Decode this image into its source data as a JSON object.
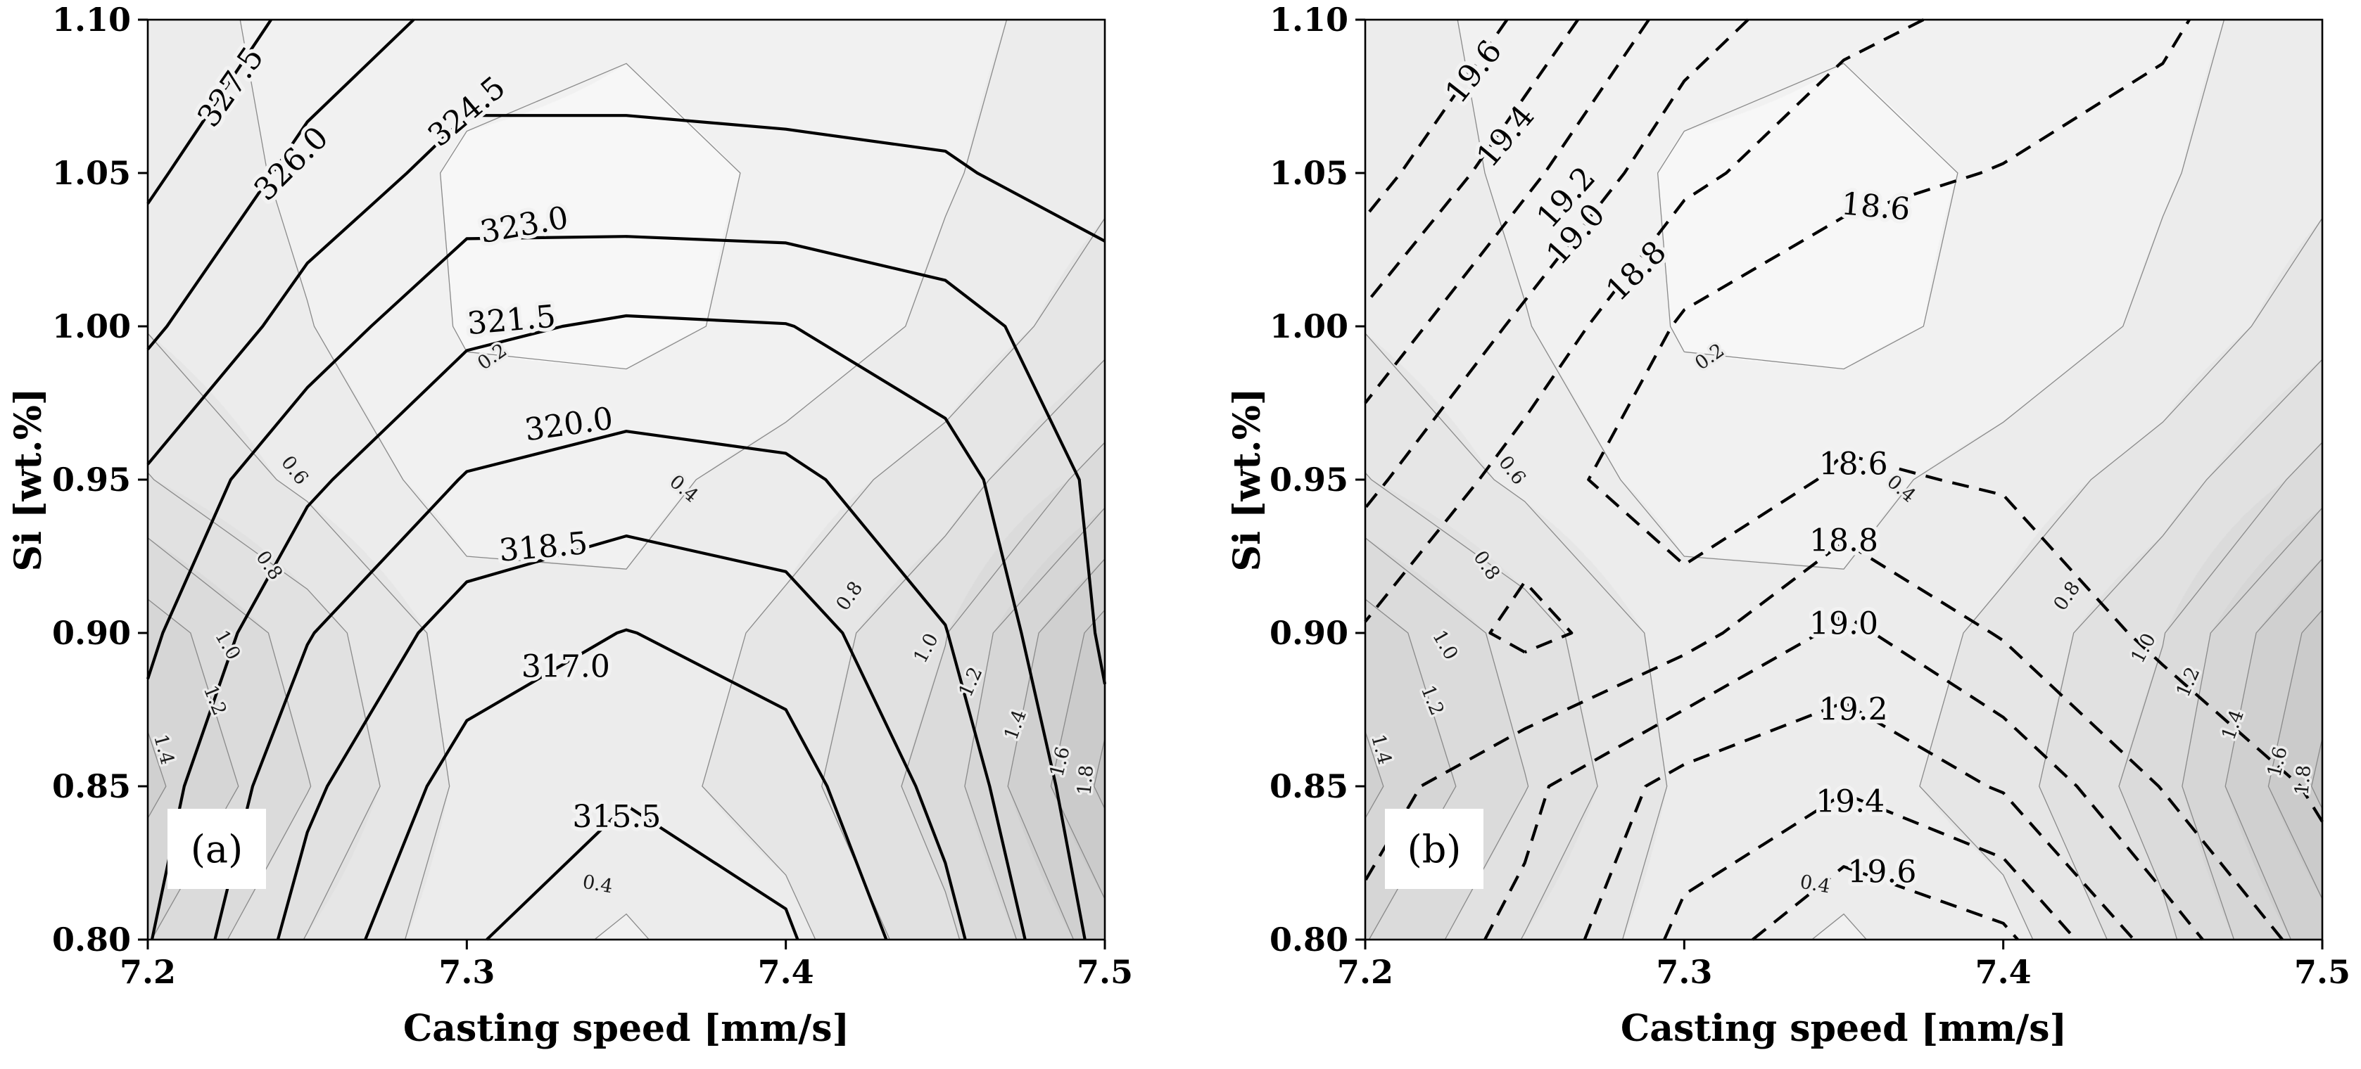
{
  "figure": {
    "background": "#ffffff"
  },
  "chart_data": [
    {
      "type": "contour",
      "panel_label": "(a)",
      "xlabel": "Casting speed [mm/s]",
      "ylabel": "Si [wt.%]",
      "xlim": [
        7.2,
        7.5
      ],
      "ylim": [
        0.8,
        1.1
      ],
      "xticks": [
        "7.2",
        "7.3",
        "7.4",
        "7.5"
      ],
      "yticks": [
        "0.80",
        "0.85",
        "0.90",
        "0.95",
        "1.00",
        "1.05",
        "1.10"
      ],
      "x": [
        7.2,
        7.25,
        7.3,
        7.35,
        7.4,
        7.45,
        7.5
      ],
      "y": [
        0.8,
        0.85,
        0.9,
        0.95,
        1.0,
        1.05,
        1.1
      ],
      "primary": {
        "style": "solid",
        "color": "#000000",
        "levels": [
          315.5,
          317.0,
          318.5,
          320.0,
          321.5,
          323.0,
          324.5,
          326.0,
          327.5
        ],
        "values": [
          [
            321.6,
            317.8,
            315.6,
            314.8,
            315.3,
            318.0,
            322.0
          ],
          [
            322.3,
            318.8,
            316.4,
            315.6,
            316.3,
            319.0,
            322.6
          ],
          [
            323.3,
            320.1,
            317.8,
            316.95,
            317.7,
            319.95,
            323.2
          ],
          [
            324.3,
            321.8,
            319.9,
            319.4,
            319.7,
            320.9,
            323.4
          ],
          [
            326.3,
            323.8,
            321.8,
            321.3,
            321.45,
            322.4,
            324.0
          ],
          [
            327.8,
            325.5,
            323.9,
            324.2,
            324.3,
            324.4,
            324.9
          ],
          [
            329.2,
            327.0,
            325.5,
            325.0,
            325.0,
            325.1,
            325.5
          ]
        ]
      },
      "background_field": {
        "style": "thin",
        "color": "#8a8a8a",
        "levels": [
          0.2,
          0.4,
          0.6,
          0.8,
          1.0,
          1.2,
          1.4,
          1.6,
          1.8
        ],
        "fill_shades": [
          "#f7f7f7",
          "#f1f1f1",
          "#ececec",
          "#e6e6e6",
          "#e1e1e1",
          "#dbdbdb",
          "#d6d6d6",
          "#d0d0d0",
          "#cbcbcb",
          "#c5c5c5"
        ],
        "values": [
          [
            1.21,
            0.79,
            0.48,
            0.38,
            0.52,
            0.95,
            1.51
          ],
          [
            1.45,
            1.01,
            0.55,
            0.5,
            0.71,
            1.11,
            1.85
          ],
          [
            1.31,
            0.9,
            0.5,
            0.45,
            0.65,
            0.99,
            1.69
          ],
          [
            0.81,
            0.55,
            0.3,
            0.33,
            0.49,
            0.69,
            1.09
          ],
          [
            0.59,
            0.41,
            0.18,
            0.15,
            0.25,
            0.45,
            0.72
          ],
          [
            0.55,
            0.35,
            0.17,
            0.15,
            0.22,
            0.38,
            0.55
          ],
          [
            0.51,
            0.32,
            0.28,
            0.22,
            0.28,
            0.35,
            0.48
          ]
        ]
      },
      "contour_labels": [
        {
          "text": "327.5",
          "x": 7.226,
          "y": 1.078,
          "rot": -55,
          "kind": "primary"
        },
        {
          "text": "326.0",
          "x": 7.245,
          "y": 1.053,
          "rot": -45,
          "kind": "primary"
        },
        {
          "text": "324.5",
          "x": 7.3,
          "y": 1.07,
          "rot": -40,
          "kind": "primary"
        },
        {
          "text": "323.0",
          "x": 7.318,
          "y": 1.033,
          "rot": -10,
          "kind": "primary"
        },
        {
          "text": "321.5",
          "x": 7.314,
          "y": 1.002,
          "rot": -5,
          "kind": "primary"
        },
        {
          "text": "320.0",
          "x": 7.332,
          "y": 0.968,
          "rot": -8,
          "kind": "primary"
        },
        {
          "text": "318.5",
          "x": 7.324,
          "y": 0.928,
          "rot": -5,
          "kind": "primary"
        },
        {
          "text": "317.0",
          "x": 7.331,
          "y": 0.889,
          "rot": 0,
          "kind": "primary"
        },
        {
          "text": "315.5",
          "x": 7.347,
          "y": 0.84,
          "rot": 0,
          "kind": "primary"
        },
        {
          "text": "0.2",
          "x": 7.308,
          "y": 0.99,
          "rot": -35,
          "kind": "sigma"
        },
        {
          "text": "0.4",
          "x": 7.368,
          "y": 0.947,
          "rot": 40,
          "kind": "sigma"
        },
        {
          "text": "0.6",
          "x": 7.246,
          "y": 0.953,
          "rot": 52,
          "kind": "sigma"
        },
        {
          "text": "0.8",
          "x": 7.238,
          "y": 0.922,
          "rot": 55,
          "kind": "sigma"
        },
        {
          "text": "1.0",
          "x": 7.225,
          "y": 0.896,
          "rot": 60,
          "kind": "sigma"
        },
        {
          "text": "1.2",
          "x": 7.221,
          "y": 0.878,
          "rot": 68,
          "kind": "sigma"
        },
        {
          "text": "1.4",
          "x": 7.205,
          "y": 0.862,
          "rot": 75,
          "kind": "sigma"
        },
        {
          "text": "0.8",
          "x": 7.42,
          "y": 0.912,
          "rot": -55,
          "kind": "sigma"
        },
        {
          "text": "1.0",
          "x": 7.444,
          "y": 0.895,
          "rot": -62,
          "kind": "sigma"
        },
        {
          "text": "1.2",
          "x": 7.458,
          "y": 0.884,
          "rot": -66,
          "kind": "sigma"
        },
        {
          "text": "1.4",
          "x": 7.472,
          "y": 0.87,
          "rot": -70,
          "kind": "sigma"
        },
        {
          "text": "1.6",
          "x": 7.486,
          "y": 0.858,
          "rot": -76,
          "kind": "sigma"
        },
        {
          "text": "1.8",
          "x": 7.494,
          "y": 0.852,
          "rot": -85,
          "kind": "sigma"
        },
        {
          "text": "0.4",
          "x": 7.341,
          "y": 0.818,
          "rot": 10,
          "kind": "sigma"
        }
      ]
    },
    {
      "type": "contour",
      "panel_label": "(b)",
      "xlabel": "Casting speed [mm/s]",
      "ylabel": "Si [wt.%]",
      "xlim": [
        7.2,
        7.5
      ],
      "ylim": [
        0.8,
        1.1
      ],
      "xticks": [
        "7.2",
        "7.3",
        "7.4",
        "7.5"
      ],
      "yticks": [
        "0.80",
        "0.85",
        "0.90",
        "0.95",
        "1.00",
        "1.05",
        "1.10"
      ],
      "x": [
        7.2,
        7.25,
        7.3,
        7.35,
        7.4,
        7.45,
        7.5
      ],
      "y": [
        0.8,
        0.85,
        0.9,
        0.95,
        1.0,
        1.05,
        1.1
      ],
      "primary": {
        "style": "dashed",
        "color": "#000000",
        "levels": [
          18.6,
          18.8,
          19.0,
          19.2,
          19.4,
          19.6
        ],
        "values": [
          [
            18.85,
            19.05,
            19.45,
            19.8,
            19.65,
            19.1,
            18.7
          ],
          [
            18.72,
            18.95,
            19.28,
            19.38,
            19.18,
            18.79,
            18.57
          ],
          [
            18.78,
            18.55,
            18.72,
            19.05,
            18.78,
            18.55,
            18.48
          ],
          [
            19.05,
            18.7,
            18.45,
            18.63,
            18.58,
            18.45,
            18.42
          ],
          [
            19.35,
            18.95,
            18.57,
            18.45,
            18.42,
            18.42,
            18.41
          ],
          [
            19.7,
            19.25,
            18.85,
            18.66,
            18.59,
            18.55,
            18.45
          ],
          [
            20.0,
            19.55,
            19.1,
            18.85,
            18.75,
            18.62,
            18.5
          ]
        ]
      },
      "background_field": {
        "style": "thin",
        "color": "#8a8a8a",
        "levels": [
          0.2,
          0.4,
          0.6,
          0.8,
          1.0,
          1.2,
          1.4,
          1.6,
          1.8
        ],
        "fill_shades": [
          "#f7f7f7",
          "#f1f1f1",
          "#ececec",
          "#e6e6e6",
          "#e1e1e1",
          "#dbdbdb",
          "#d6d6d6",
          "#d0d0d0",
          "#cbcbcb",
          "#c5c5c5"
        ],
        "values": [
          [
            1.21,
            0.79,
            0.48,
            0.38,
            0.52,
            0.95,
            1.51
          ],
          [
            1.45,
            1.01,
            0.55,
            0.5,
            0.71,
            1.11,
            1.85
          ],
          [
            1.31,
            0.9,
            0.5,
            0.45,
            0.65,
            0.99,
            1.69
          ],
          [
            0.81,
            0.55,
            0.3,
            0.33,
            0.49,
            0.69,
            1.09
          ],
          [
            0.59,
            0.41,
            0.18,
            0.15,
            0.25,
            0.45,
            0.72
          ],
          [
            0.55,
            0.35,
            0.17,
            0.15,
            0.22,
            0.38,
            0.55
          ],
          [
            0.51,
            0.32,
            0.28,
            0.22,
            0.28,
            0.35,
            0.48
          ]
        ]
      },
      "contour_labels": [
        {
          "text": "19.6",
          "x": 7.234,
          "y": 1.083,
          "rot": -52,
          "kind": "primary"
        },
        {
          "text": "19.4",
          "x": 7.244,
          "y": 1.062,
          "rot": -50,
          "kind": "primary"
        },
        {
          "text": "19.2",
          "x": 7.263,
          "y": 1.042,
          "rot": -48,
          "kind": "primary"
        },
        {
          "text": "19.0",
          "x": 7.266,
          "y": 1.03,
          "rot": -48,
          "kind": "primary"
        },
        {
          "text": "18.8",
          "x": 7.285,
          "y": 1.018,
          "rot": -45,
          "kind": "primary"
        },
        {
          "text": "18.6",
          "x": 7.36,
          "y": 1.039,
          "rot": 5,
          "kind": "primary"
        },
        {
          "text": "18.6",
          "x": 7.353,
          "y": 0.955,
          "rot": 0,
          "kind": "primary"
        },
        {
          "text": "18.8",
          "x": 7.35,
          "y": 0.93,
          "rot": 0,
          "kind": "primary"
        },
        {
          "text": "19.0",
          "x": 7.35,
          "y": 0.903,
          "rot": 0,
          "kind": "primary"
        },
        {
          "text": "19.2",
          "x": 7.353,
          "y": 0.875,
          "rot": 0,
          "kind": "primary"
        },
        {
          "text": "19.4",
          "x": 7.352,
          "y": 0.845,
          "rot": 0,
          "kind": "primary"
        },
        {
          "text": "19.6",
          "x": 7.362,
          "y": 0.822,
          "rot": 0,
          "kind": "primary"
        },
        {
          "text": "0.2",
          "x": 7.308,
          "y": 0.99,
          "rot": -35,
          "kind": "sigma"
        },
        {
          "text": "0.4",
          "x": 7.368,
          "y": 0.947,
          "rot": 40,
          "kind": "sigma"
        },
        {
          "text": "0.6",
          "x": 7.246,
          "y": 0.953,
          "rot": 52,
          "kind": "sigma"
        },
        {
          "text": "0.8",
          "x": 7.238,
          "y": 0.922,
          "rot": 55,
          "kind": "sigma"
        },
        {
          "text": "1.0",
          "x": 7.225,
          "y": 0.896,
          "rot": 60,
          "kind": "sigma"
        },
        {
          "text": "1.2",
          "x": 7.221,
          "y": 0.878,
          "rot": 68,
          "kind": "sigma"
        },
        {
          "text": "1.4",
          "x": 7.205,
          "y": 0.862,
          "rot": 75,
          "kind": "sigma"
        },
        {
          "text": "0.8",
          "x": 7.42,
          "y": 0.912,
          "rot": -55,
          "kind": "sigma"
        },
        {
          "text": "1.0",
          "x": 7.444,
          "y": 0.895,
          "rot": -62,
          "kind": "sigma"
        },
        {
          "text": "1.2",
          "x": 7.458,
          "y": 0.884,
          "rot": -66,
          "kind": "sigma"
        },
        {
          "text": "1.4",
          "x": 7.472,
          "y": 0.87,
          "rot": -70,
          "kind": "sigma"
        },
        {
          "text": "1.6",
          "x": 7.486,
          "y": 0.858,
          "rot": -76,
          "kind": "sigma"
        },
        {
          "text": "1.8",
          "x": 7.494,
          "y": 0.852,
          "rot": -85,
          "kind": "sigma"
        },
        {
          "text": "0.4",
          "x": 7.341,
          "y": 0.818,
          "rot": 10,
          "kind": "sigma"
        }
      ]
    }
  ]
}
